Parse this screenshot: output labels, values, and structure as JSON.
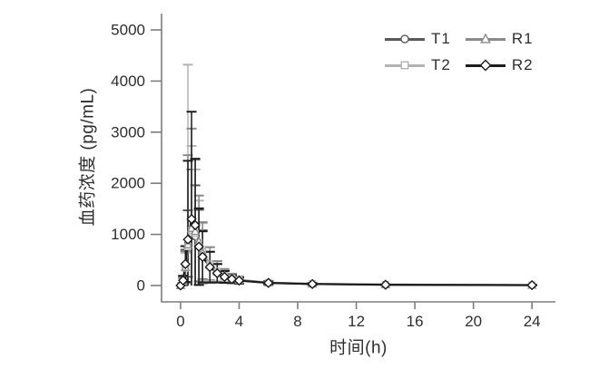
{
  "figure": {
    "background": "#ffffff",
    "axis_color": "#7d7d7d",
    "tick_text_color": "#2e2e2e"
  },
  "chart_data": {
    "type": "line",
    "title": "",
    "xlabel": "时间(h)",
    "ylabel": "血药浓度 (pg/mL)",
    "x_ticks": [
      0,
      4,
      8,
      12,
      16,
      20,
      24
    ],
    "y_ticks": [
      0,
      1000,
      2000,
      3000,
      4000,
      5000
    ],
    "xlim": [
      -1.3,
      25.6
    ],
    "ylim": [
      -320,
      5320
    ],
    "grid": false,
    "error_bars": true,
    "legend_position": "top-right",
    "legend_order": [
      "T1",
      "R1",
      "T2",
      "R2"
    ],
    "x": [
      0,
      0.17,
      0.33,
      0.5,
      0.75,
      1,
      1.25,
      1.5,
      2,
      2.5,
      3,
      3.5,
      4,
      6,
      9,
      14,
      24
    ],
    "series": [
      {
        "name": "T1",
        "color": "#595959",
        "marker": "circle",
        "values": [
          0,
          90,
          380,
          820,
          1020,
          960,
          780,
          600,
          380,
          250,
          175,
          130,
          100,
          52,
          30,
          16,
          7
        ],
        "err": [
          0,
          80,
          320,
          650,
          1250,
          1000,
          700,
          480,
          280,
          170,
          110,
          75,
          55,
          28,
          15,
          8,
          4
        ]
      },
      {
        "name": "T2",
        "color": "#b3b3b3",
        "marker": "square",
        "values": [
          0,
          70,
          340,
          760,
          1080,
          1020,
          840,
          660,
          420,
          280,
          195,
          145,
          112,
          58,
          34,
          19,
          9
        ],
        "err": [
          0,
          70,
          300,
          3560,
          1650,
          1250,
          820,
          560,
          330,
          200,
          130,
          88,
          65,
          32,
          17,
          9,
          4
        ]
      },
      {
        "name": "R1",
        "color": "#8a8a8a",
        "marker": "triangle",
        "values": [
          0,
          80,
          360,
          800,
          1120,
          1060,
          860,
          640,
          400,
          265,
          185,
          138,
          106,
          55,
          32,
          17,
          8
        ],
        "err": [
          0,
          75,
          310,
          1750,
          1950,
          1400,
          900,
          600,
          350,
          210,
          135,
          90,
          68,
          33,
          17,
          9,
          4
        ]
      },
      {
        "name": "R2",
        "color": "#1c1c1c",
        "marker": "diamond",
        "values": [
          0,
          100,
          420,
          900,
          1300,
          1180,
          760,
          560,
          360,
          240,
          168,
          125,
          96,
          50,
          29,
          15,
          7
        ],
        "err": [
          0,
          90,
          350,
          1540,
          2100,
          1300,
          750,
          500,
          300,
          180,
          115,
          78,
          58,
          30,
          16,
          8,
          4
        ]
      }
    ]
  }
}
